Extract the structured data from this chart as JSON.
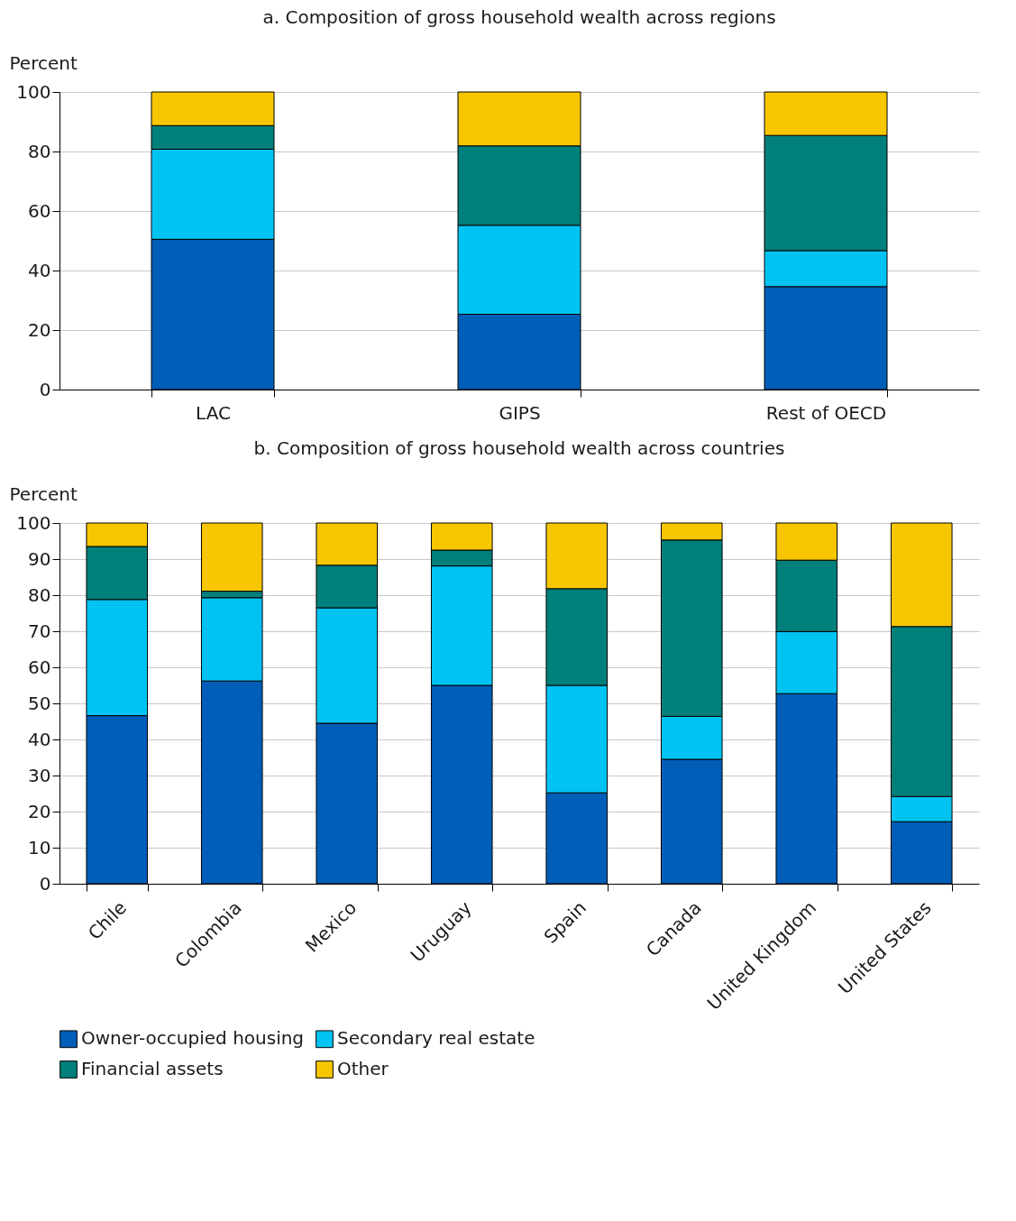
{
  "chart_data": [
    {
      "type": "bar",
      "title": "a. Composition of gross household wealth across regions",
      "ylabel": "Percent",
      "stacked": true,
      "grid": "y",
      "categories": [
        "LAC",
        "GIPS",
        "Rest of OECD"
      ],
      "ylim": [
        0,
        100
      ],
      "yticks": [
        0,
        20,
        40,
        60,
        80,
        100
      ],
      "series": [
        {
          "color": "#005eb8",
          "values": [
            50.5,
            25.3,
            34.6
          ]
        },
        {
          "color": "#00c3f2",
          "values": [
            30.3,
            29.9,
            12.1
          ]
        },
        {
          "color": "#007f7b",
          "values": [
            7.9,
            26.7,
            38.7
          ]
        },
        {
          "color": "#f7c600",
          "values": [
            11.3,
            18.1,
            14.6
          ]
        }
      ]
    },
    {
      "type": "bar",
      "title": "b. Composition of gross household wealth across countries",
      "ylabel": "Percent",
      "stacked": true,
      "grid": "y",
      "legend": "bottom",
      "categories": [
        "Chile",
        "Colombia",
        "Mexico",
        "Uruguay",
        "Spain",
        "Canada",
        "United Kingdom",
        "United States"
      ],
      "ylim": [
        0,
        100
      ],
      "yticks": [
        0,
        10,
        20,
        30,
        40,
        50,
        60,
        70,
        80,
        90,
        100
      ],
      "series": [
        {
          "name": "Owner-occupied housing",
          "color": "#005eb8",
          "values": [
            46.6,
            56.2,
            44.5,
            55.0,
            25.2,
            34.5,
            52.7,
            17.2
          ]
        },
        {
          "name": "Secondary real estate",
          "color": "#00c3f2",
          "values": [
            32.2,
            23.1,
            32.0,
            33.1,
            29.8,
            11.9,
            17.2,
            7.0
          ]
        },
        {
          "name": "Financial assets",
          "color": "#007f7b",
          "values": [
            14.7,
            1.8,
            11.8,
            4.4,
            26.8,
            48.9,
            19.8,
            47.1
          ]
        },
        {
          "name": "Other",
          "color": "#f7c600",
          "values": [
            6.5,
            18.9,
            11.7,
            7.5,
            18.2,
            4.7,
            10.3,
            28.7
          ]
        }
      ]
    }
  ]
}
